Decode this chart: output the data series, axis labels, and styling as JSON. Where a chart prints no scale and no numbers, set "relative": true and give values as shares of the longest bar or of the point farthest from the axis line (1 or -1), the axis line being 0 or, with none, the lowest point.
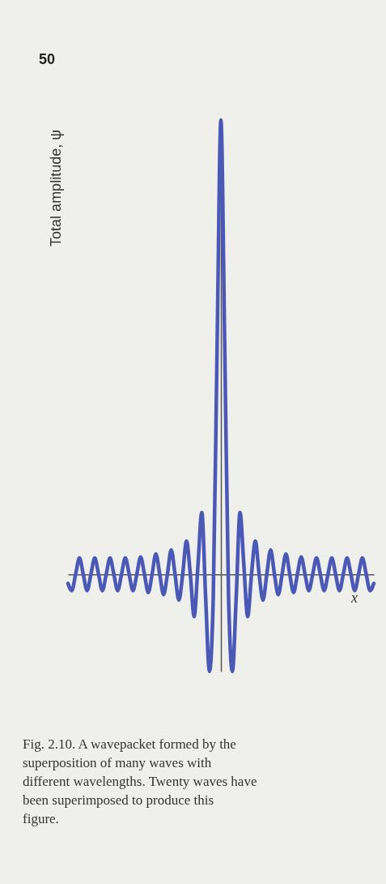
{
  "chart_data": {
    "type": "line",
    "relative": true,
    "ylabel": "Total amplitude, ψ",
    "xlabel": "x",
    "annotations": [
      "50",
      "Fig. 2.10. A wavepacket formed by the superposition of many waves with different wavelengths. Twenty waves have been superimposed to produce this figure."
    ],
    "categories": [
      null,
      null,
      null,
      null,
      null,
      null,
      null,
      null,
      null,
      null,
      null,
      null,
      null,
      null,
      null,
      null,
      null,
      null,
      null,
      null,
      null,
      null,
      null,
      null,
      null,
      null,
      null,
      null,
      null,
      null,
      null,
      null,
      null,
      null,
      null,
      null,
      null,
      null,
      null,
      null,
      null,
      null,
      null,
      null,
      null,
      null,
      null,
      null,
      null,
      null,
      null,
      null,
      null,
      null,
      null,
      null,
      null,
      null,
      null,
      null,
      null,
      null,
      null,
      null,
      null,
      null,
      null,
      null,
      null,
      null,
      null,
      null,
      null,
      null,
      null,
      null,
      null,
      null,
      null,
      null,
      null
    ],
    "series": [
      {
        "color": "#4a58b6",
        "values": [
          -0.02,
          -0.036,
          0,
          0.036,
          0,
          -0.036,
          0,
          0.036,
          0,
          -0.036,
          0,
          0.036,
          0,
          -0.036,
          0,
          0.036,
          0,
          -0.036,
          0,
          0.038,
          0,
          -0.04,
          0,
          0.045,
          0,
          -0.045,
          0,
          0.054,
          0,
          -0.057,
          0,
          0.073,
          0,
          -0.093,
          0.02,
          0.136,
          -0.05,
          -0.214,
          -0.05,
          0.5,
          1.0,
          0.5,
          -0.05,
          -0.214,
          -0.05,
          0.136,
          0.02,
          -0.093,
          0,
          0.073,
          0,
          -0.057,
          0,
          0.054,
          0,
          -0.045,
          0,
          0.045,
          0,
          -0.04,
          0,
          0.038,
          0,
          -0.036,
          0,
          0.036,
          0,
          -0.036,
          0,
          0.036,
          0,
          -0.036,
          0,
          0.036,
          0,
          -0.036,
          0,
          0.036,
          0,
          -0.036,
          -0.02
        ]
      }
    ],
    "grid": false,
    "tick_labels": false,
    "line_style": "solid",
    "marker": "none"
  }
}
